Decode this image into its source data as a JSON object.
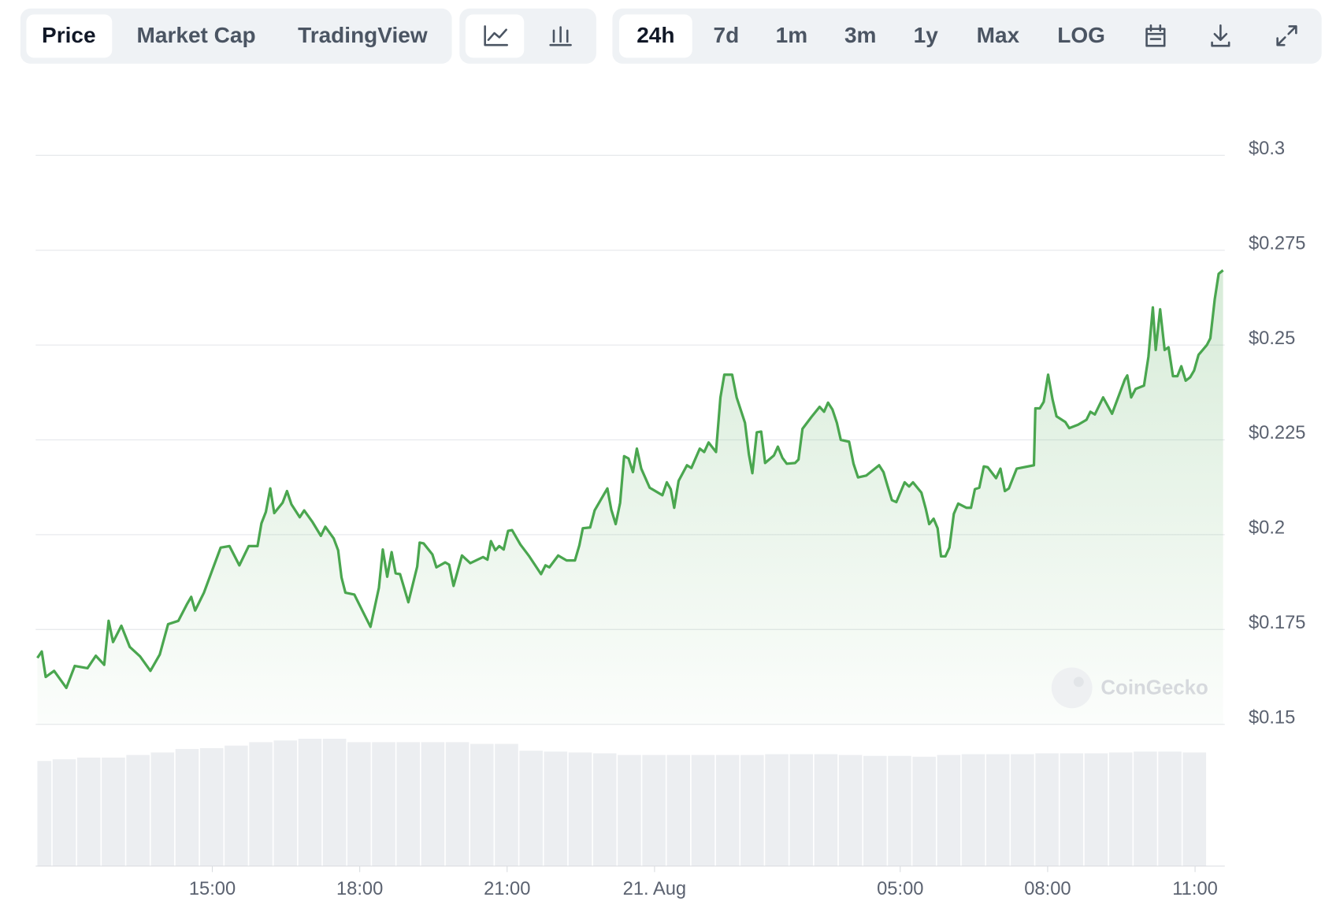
{
  "toolbar": {
    "views": [
      "Price",
      "Market Cap",
      "TradingView"
    ],
    "ranges": [
      "24h",
      "7d",
      "1m",
      "3m",
      "1y",
      "Max",
      "LOG"
    ]
  },
  "chart_data": {
    "type": "line",
    "watermark": "CoinGecko",
    "color": "#4aa64f",
    "grid": true,
    "x": [
      11.44,
      11.53,
      11.61,
      11.78,
      12.03,
      12.2,
      12.46,
      12.63,
      12.8,
      12.89,
      12.98,
      13.15,
      13.32,
      13.53,
      13.74,
      13.93,
      14.1,
      14.31,
      14.48,
      14.57,
      14.65,
      14.83,
      15.0,
      15.17,
      15.35,
      15.55,
      15.74,
      15.92,
      16.0,
      16.09,
      16.18,
      16.26,
      16.43,
      16.52,
      16.61,
      16.78,
      16.87,
      17.04,
      17.21,
      17.3,
      17.47,
      17.56,
      17.63,
      17.71,
      17.89,
      18.06,
      18.22,
      18.39,
      18.47,
      18.56,
      18.65,
      18.73,
      18.82,
      18.99,
      19.17,
      19.22,
      19.3,
      19.48,
      19.56,
      19.74,
      19.82,
      19.91,
      20.08,
      20.25,
      20.51,
      20.6,
      20.67,
      20.76,
      20.84,
      20.93,
      21.02,
      21.1,
      21.27,
      21.45,
      21.69,
      21.78,
      21.86,
      22.04,
      22.21,
      22.38,
      22.47,
      22.54,
      22.69,
      22.78,
      22.95,
      23.04,
      23.12,
      23.21,
      23.3,
      23.38,
      23.47,
      23.56,
      23.64,
      23.73,
      23.9,
      24.16,
      24.25,
      24.33,
      24.4,
      24.49,
      24.66,
      24.75,
      24.92,
      25.01,
      25.1,
      25.25,
      25.34,
      25.42,
      25.58,
      25.67,
      25.84,
      25.92,
      25.99,
      26.08,
      26.17,
      26.25,
      26.43,
      26.51,
      26.6,
      26.69,
      26.86,
      26.93,
      27.01,
      27.19,
      27.36,
      27.45,
      27.53,
      27.62,
      27.71,
      27.79,
      27.96,
      28.05,
      28.14,
      28.31,
      28.57,
      28.66,
      28.74,
      28.83,
      28.92,
      29.09,
      29.18,
      29.26,
      29.43,
      29.52,
      29.59,
      29.68,
      29.76,
      29.83,
      29.92,
      30.0,
      30.09,
      30.18,
      30.35,
      30.44,
      30.52,
      30.61,
      30.7,
      30.78,
      30.95,
      31.04,
      31.13,
      31.21,
      31.37,
      31.72,
      31.75,
      31.84,
      31.92,
      32.01,
      32.1,
      32.18,
      32.36,
      32.44,
      32.62,
      32.79,
      32.87,
      32.96,
      33.13,
      33.31,
      33.57,
      33.62,
      33.7,
      33.79,
      33.96,
      34.05,
      34.14,
      34.2,
      34.29,
      34.38,
      34.46,
      34.55,
      34.64,
      34.72,
      34.81,
      34.9,
      34.98,
      35.07,
      35.24,
      35.31,
      35.4,
      35.48,
      35.57
    ],
    "values": [
      0.1675,
      0.1692,
      0.1625,
      0.1641,
      0.1596,
      0.1654,
      0.1648,
      0.1681,
      0.1657,
      0.1773,
      0.1717,
      0.176,
      0.1704,
      0.1679,
      0.1641,
      0.1684,
      0.1764,
      0.1773,
      0.1816,
      0.1836,
      0.18,
      0.1847,
      0.1907,
      0.1966,
      0.197,
      0.1919,
      0.197,
      0.197,
      0.203,
      0.206,
      0.2122,
      0.2057,
      0.2084,
      0.2115,
      0.208,
      0.2046,
      0.2064,
      0.2033,
      0.1997,
      0.2021,
      0.199,
      0.1959,
      0.1887,
      0.1847,
      0.1842,
      0.1798,
      0.1757,
      0.186,
      0.1961,
      0.1889,
      0.1954,
      0.1898,
      0.1896,
      0.1822,
      0.1916,
      0.1979,
      0.1977,
      0.1948,
      0.1914,
      0.1927,
      0.1921,
      0.1865,
      0.1945,
      0.1925,
      0.1941,
      0.1934,
      0.1983,
      0.1959,
      0.197,
      0.1961,
      0.201,
      0.2012,
      0.1974,
      0.1943,
      0.1896,
      0.1919,
      0.1914,
      0.1945,
      0.1932,
      0.1932,
      0.1972,
      0.2017,
      0.2019,
      0.2064,
      0.2102,
      0.2122,
      0.2066,
      0.2028,
      0.2084,
      0.2207,
      0.2201,
      0.2165,
      0.2227,
      0.2174,
      0.2124,
      0.2104,
      0.2138,
      0.212,
      0.2071,
      0.2142,
      0.2183,
      0.2176,
      0.2227,
      0.2218,
      0.2243,
      0.2218,
      0.2362,
      0.2422,
      0.2422,
      0.2362,
      0.2295,
      0.2212,
      0.2162,
      0.227,
      0.2272,
      0.2189,
      0.2209,
      0.2232,
      0.2203,
      0.2187,
      0.2189,
      0.2198,
      0.2279,
      0.231,
      0.2337,
      0.2324,
      0.2348,
      0.233,
      0.2295,
      0.225,
      0.2245,
      0.2187,
      0.2151,
      0.2156,
      0.2183,
      0.2165,
      0.2129,
      0.2091,
      0.2086,
      0.2138,
      0.2127,
      0.2138,
      0.2111,
      0.2068,
      0.2028,
      0.2042,
      0.2017,
      0.1943,
      0.1943,
      0.1966,
      0.2055,
      0.2082,
      0.2071,
      0.2071,
      0.212,
      0.2124,
      0.218,
      0.2178,
      0.2149,
      0.2174,
      0.2115,
      0.2122,
      0.2174,
      0.2183,
      0.2333,
      0.2333,
      0.235,
      0.2422,
      0.2357,
      0.2312,
      0.2297,
      0.2281,
      0.229,
      0.2303,
      0.2324,
      0.2317,
      0.2362,
      0.2319,
      0.2409,
      0.242,
      0.2362,
      0.2384,
      0.2393,
      0.2469,
      0.2599,
      0.2487,
      0.2594,
      0.2487,
      0.2494,
      0.2418,
      0.2418,
      0.2444,
      0.2406,
      0.2415,
      0.2433,
      0.2474,
      0.25,
      0.2518,
      0.2621,
      0.2688,
      0.2697
    ],
    "xlim": [
      11.44,
      35.57
    ],
    "xticks": [
      {
        "value": 15,
        "label": "15:00"
      },
      {
        "value": 18,
        "label": "18:00"
      },
      {
        "value": 21,
        "label": "21:00"
      },
      {
        "value": 24,
        "label": "21. Aug"
      },
      {
        "value": 29,
        "label": "05:00"
      },
      {
        "value": 32,
        "label": "08:00"
      },
      {
        "value": 35,
        "label": "11:00"
      }
    ],
    "ylim": [
      0.15,
      0.3
    ],
    "yticks": [
      {
        "value": 0.15,
        "label": "$0.15"
      },
      {
        "value": 0.175,
        "label": "$0.175"
      },
      {
        "value": 0.2,
        "label": "$0.2"
      },
      {
        "value": 0.225,
        "label": "$0.225"
      },
      {
        "value": 0.25,
        "label": "$0.25"
      },
      {
        "value": 0.275,
        "label": "$0.275"
      },
      {
        "value": 0.3,
        "label": "$0.3"
      }
    ],
    "volume": {
      "color": "#eceef1",
      "x": [
        11.5,
        12,
        12.5,
        13,
        13.5,
        14,
        14.5,
        15,
        15.5,
        16,
        16.5,
        17,
        17.5,
        18,
        18.5,
        19,
        19.5,
        20,
        20.5,
        21,
        21.5,
        22,
        22.5,
        23,
        23.5,
        24,
        24.5,
        25,
        25.5,
        26,
        26.5,
        27,
        27.5,
        28,
        28.5,
        29,
        29.5,
        30,
        30.5,
        31,
        31.5,
        32,
        32.5,
        33,
        33.5,
        34,
        34.5,
        35
      ],
      "values": [
        123,
        125,
        127,
        127,
        130,
        133,
        137,
        138,
        141,
        145,
        147,
        149,
        149,
        145,
        145,
        145,
        145,
        145,
        143,
        143,
        135,
        134,
        133,
        132,
        130,
        130,
        130,
        130,
        130,
        130,
        131,
        131,
        131,
        130,
        129,
        129,
        128,
        130,
        131,
        131,
        131,
        132,
        132,
        132,
        133,
        134,
        134,
        133
      ]
    }
  }
}
